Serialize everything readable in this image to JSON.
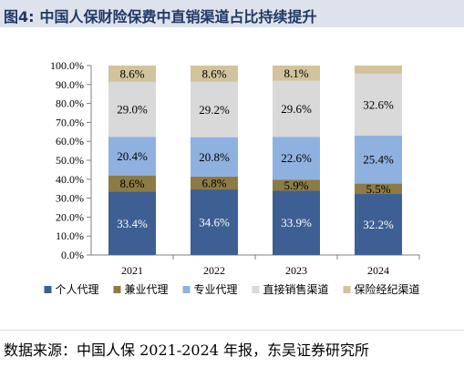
{
  "figure": {
    "label": "图4:",
    "title": "中国人保财险保费中直销渠道占比持续提升"
  },
  "source": "数据来源：中国人保 2021-2024 年报，东吴证券研究所",
  "chart_data": {
    "type": "bar",
    "stacked": true,
    "categories": [
      "2021",
      "2022",
      "2023",
      "2024"
    ],
    "series": [
      {
        "name": "个人代理",
        "color": "#3d5f93",
        "label_color": "#ffffff",
        "values": [
          33.4,
          34.6,
          33.9,
          32.2
        ]
      },
      {
        "name": "兼业代理",
        "color": "#8c7b45",
        "label_color": "#000000",
        "values": [
          8.6,
          6.8,
          5.9,
          5.5
        ]
      },
      {
        "name": "专业代理",
        "color": "#8fb1e0",
        "label_color": "#000000",
        "values": [
          20.4,
          20.8,
          22.6,
          25.4
        ]
      },
      {
        "name": "直接销售渠道",
        "color": "#d9d9d9",
        "label_color": "#000000",
        "values": [
          29.0,
          29.2,
          29.6,
          32.6
        ]
      },
      {
        "name": "保险经纪渠道",
        "color": "#d2c39c",
        "label_color": "#000000",
        "values": [
          8.6,
          8.6,
          8.1,
          4.3
        ]
      }
    ],
    "data_labels": [
      [
        "33.4%",
        "34.6%",
        "33.9%",
        "32.2%"
      ],
      [
        "8.6%",
        "6.8%",
        "5.9%",
        "5.5%"
      ],
      [
        "20.4%",
        "20.8%",
        "22.6%",
        "25.4%"
      ],
      [
        "29.0%",
        "29.2%",
        "29.6%",
        "32.6%"
      ],
      [
        "8.6%",
        "8.6%",
        "8.1%",
        ""
      ]
    ],
    "y_ticks": [
      "0.0%",
      "10.0%",
      "20.0%",
      "30.0%",
      "40.0%",
      "50.0%",
      "60.0%",
      "70.0%",
      "80.0%",
      "90.0%",
      "100.0%"
    ],
    "ylim": [
      0,
      100
    ],
    "grid": false,
    "legend_position": "bottom"
  }
}
